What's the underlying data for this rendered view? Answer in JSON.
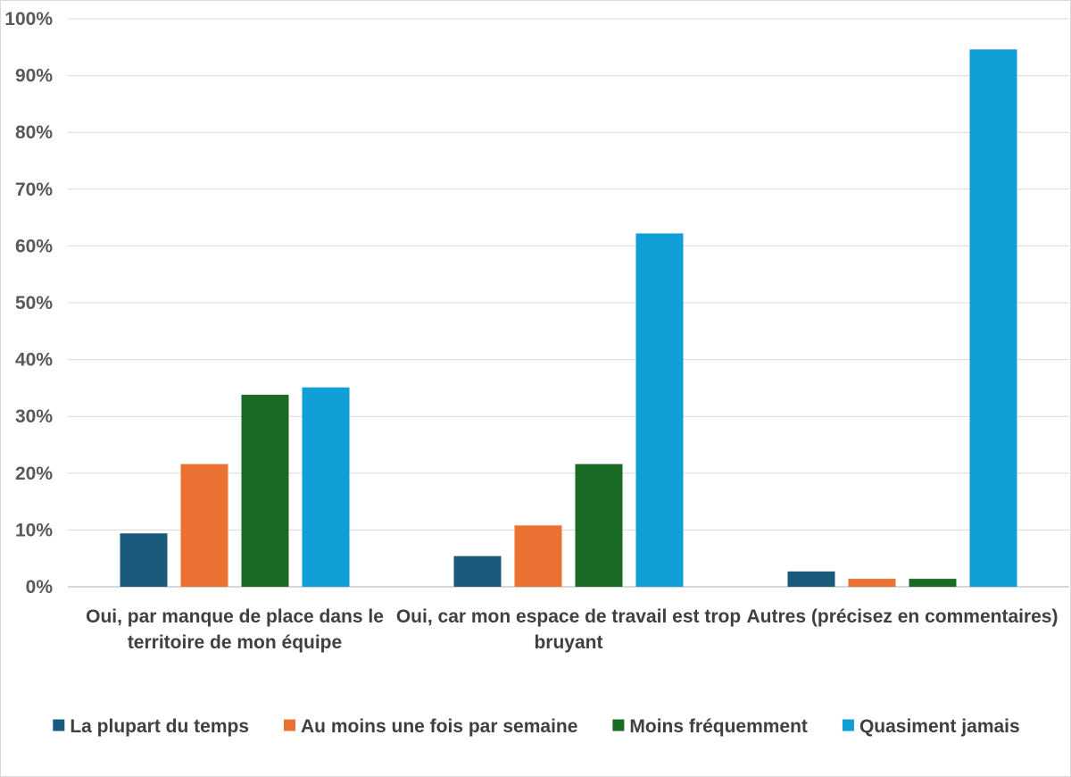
{
  "chart_data": {
    "type": "bar",
    "title": "",
    "xlabel": "",
    "ylabel": "",
    "ylim": [
      0,
      1
    ],
    "yticks": [
      "0%",
      "10%",
      "20%",
      "30%",
      "40%",
      "50%",
      "60%",
      "70%",
      "80%",
      "90%",
      "100%"
    ],
    "grid": true,
    "legend_position": "bottom",
    "categories": [
      [
        "Oui, par manque de place dans le",
        "territoire de mon équipe"
      ],
      [
        "Oui, car mon espace de travail est trop",
        "bruyant"
      ],
      [
        "Autres (précisez en commentaires)"
      ]
    ],
    "series": [
      {
        "name": "La plupart du temps",
        "color": "#1a5a7d",
        "values": [
          0.094,
          0.054,
          0.027
        ]
      },
      {
        "name": "Au moins une fois par semaine",
        "color": "#e97132",
        "values": [
          0.216,
          0.108,
          0.014
        ]
      },
      {
        "name": "Moins fréquemment",
        "color": "#196b24",
        "values": [
          0.338,
          0.216,
          0.014
        ]
      },
      {
        "name": "Quasiment jamais",
        "color": "#0f9ed5",
        "values": [
          0.351,
          0.622,
          0.946
        ]
      }
    ]
  }
}
